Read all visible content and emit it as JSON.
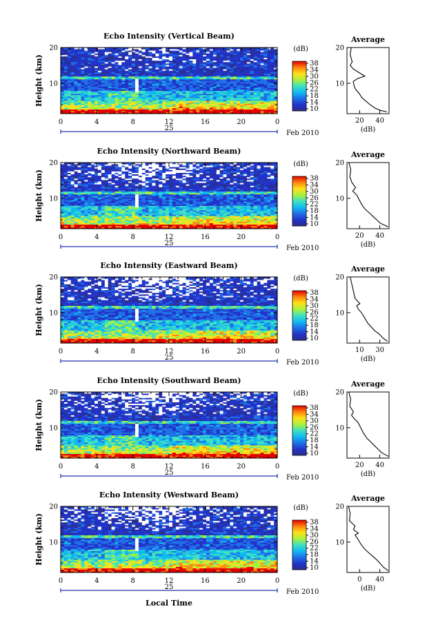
{
  "figure": {
    "date_day": "25",
    "date_suffix": "Feb 2010",
    "x_axis_label": "Local Time",
    "y_axis_label": "Height (km)",
    "colorbar_unit": "(dB)",
    "colorbar_ticks": [
      "38",
      "34",
      "30",
      "26",
      "22",
      "18",
      "14",
      "10"
    ],
    "average_title": "Average",
    "average_xlabel": "(dB)",
    "x_ticks": [
      "0",
      "4",
      "8",
      "12",
      "16",
      "20",
      "0"
    ],
    "y_ticks": [
      "20",
      "10"
    ]
  },
  "chart_data": [
    {
      "type": "heatmap",
      "title": "Echo Intensity (Vertical Beam)",
      "x_range": [
        0,
        24
      ],
      "y_range": [
        1.5,
        20
      ],
      "z_range": [
        10,
        38
      ],
      "tropopause_km": 11.5,
      "profile": {
        "xticks": [
          "20",
          "40"
        ],
        "xrange": [
          10,
          50
        ],
        "points": [
          [
            14,
            20
          ],
          [
            13,
            18
          ],
          [
            15,
            16
          ],
          [
            13,
            15
          ],
          [
            16,
            14
          ],
          [
            24,
            12.5
          ],
          [
            27,
            12
          ],
          [
            20,
            11.3
          ],
          [
            16,
            10.5
          ],
          [
            17,
            9
          ],
          [
            19,
            8
          ],
          [
            22,
            7
          ],
          [
            24,
            6
          ],
          [
            28,
            5
          ],
          [
            32,
            4
          ],
          [
            37,
            3
          ],
          [
            42,
            2.4
          ],
          [
            48,
            2
          ]
        ]
      }
    },
    {
      "type": "heatmap",
      "title": "Echo Intensity (Northward Beam)",
      "x_range": [
        0,
        24
      ],
      "y_range": [
        1.5,
        20
      ],
      "z_range": [
        10,
        38
      ],
      "tropopause_km": 11.5,
      "profile": {
        "xticks": [
          "20",
          "40"
        ],
        "xrange": [
          4,
          48
        ],
        "points": [
          [
            6,
            20
          ],
          [
            8,
            18
          ],
          [
            7,
            16
          ],
          [
            9,
            14.5
          ],
          [
            13,
            13
          ],
          [
            10,
            12
          ],
          [
            14,
            11
          ],
          [
            17,
            9.5
          ],
          [
            20,
            8
          ],
          [
            23,
            7
          ],
          [
            27,
            6
          ],
          [
            31,
            5
          ],
          [
            35,
            4
          ],
          [
            39,
            3
          ],
          [
            44,
            2.4
          ],
          [
            47,
            2
          ]
        ]
      }
    },
    {
      "type": "heatmap",
      "title": "Echo Intensity (Eastward Beam)",
      "x_range": [
        0,
        24
      ],
      "y_range": [
        1.5,
        20
      ],
      "z_range": [
        10,
        38
      ],
      "tropopause_km": 11.5,
      "profile": {
        "xticks": [
          "10",
          "30"
        ],
        "xrange": [
          4,
          30
        ],
        "points": [
          [
            6,
            20
          ],
          [
            7,
            18
          ],
          [
            8,
            16
          ],
          [
            9,
            14
          ],
          [
            11,
            13
          ],
          [
            12,
            12.5
          ],
          [
            10,
            12
          ],
          [
            11,
            11
          ],
          [
            13,
            10
          ],
          [
            15,
            8.5
          ],
          [
            17,
            7
          ],
          [
            19,
            6
          ],
          [
            21,
            5
          ],
          [
            24,
            4
          ],
          [
            26,
            3
          ],
          [
            28,
            2.3
          ],
          [
            29,
            2
          ]
        ]
      }
    },
    {
      "type": "heatmap",
      "title": "Echo Intensity (Southward Beam)",
      "x_range": [
        0,
        24
      ],
      "y_range": [
        1.5,
        20
      ],
      "z_range": [
        10,
        38
      ],
      "tropopause_km": 11.5,
      "profile": {
        "xticks": [
          "20",
          "40"
        ],
        "xrange": [
          4,
          50
        ],
        "points": [
          [
            6,
            20
          ],
          [
            8,
            18
          ],
          [
            7,
            16
          ],
          [
            11,
            14.5
          ],
          [
            9,
            13.5
          ],
          [
            12,
            12.5
          ],
          [
            16,
            11.5
          ],
          [
            19,
            10
          ],
          [
            22,
            8.5
          ],
          [
            26,
            7
          ],
          [
            30,
            6
          ],
          [
            34,
            5
          ],
          [
            38,
            4
          ],
          [
            42,
            3
          ],
          [
            47,
            2.3
          ],
          [
            49,
            2
          ]
        ]
      }
    },
    {
      "type": "heatmap",
      "title": "Echo Intensity (Westward Beam)",
      "x_range": [
        0,
        24
      ],
      "y_range": [
        1.5,
        20
      ],
      "z_range": [
        10,
        38
      ],
      "tropopause_km": 11.5,
      "profile": {
        "xticks": [
          "0",
          "40"
        ],
        "xrange": [
          0,
          52
        ],
        "points": [
          [
            2,
            20
          ],
          [
            4,
            18
          ],
          [
            3,
            16
          ],
          [
            10,
            14.5
          ],
          [
            8,
            13.5
          ],
          [
            14,
            12.5
          ],
          [
            10,
            12
          ],
          [
            13,
            11
          ],
          [
            17,
            9.5
          ],
          [
            22,
            8
          ],
          [
            27,
            7
          ],
          [
            32,
            6
          ],
          [
            37,
            5
          ],
          [
            41,
            4
          ],
          [
            45,
            3
          ],
          [
            49,
            2.3
          ],
          [
            51,
            2
          ]
        ]
      }
    }
  ],
  "colors": {
    "low": "#2a2e8c",
    "high": "#e60000"
  }
}
